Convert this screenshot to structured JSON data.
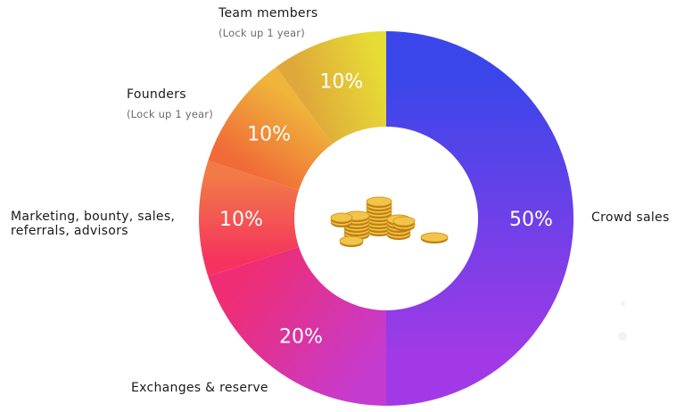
{
  "chart_data": {
    "type": "pie",
    "donut": true,
    "categories": [
      "Crowd sales",
      "Exchanges & reserve",
      "Marketing, bounty, sales, referrals, advisors",
      "Founders",
      "Team members"
    ],
    "values": [
      50,
      20,
      10,
      10,
      10
    ],
    "value_labels": [
      "50%",
      "20%",
      "10%",
      "10%",
      "10%"
    ],
    "sublabels": [
      "",
      "",
      "",
      "(Lock up 1 year)",
      "(Lock up 1 year)"
    ],
    "center_icon": "gold-coins-icon",
    "colors": [
      [
        "#3b46ea",
        "#a13ae6"
      ],
      [
        "#c53bd0",
        "#ef2d74"
      ],
      [
        "#f6335e",
        "#f17a46"
      ],
      [
        "#f06b38",
        "#efb43a"
      ],
      [
        "#dfa83a",
        "#e6dc35"
      ]
    ]
  }
}
